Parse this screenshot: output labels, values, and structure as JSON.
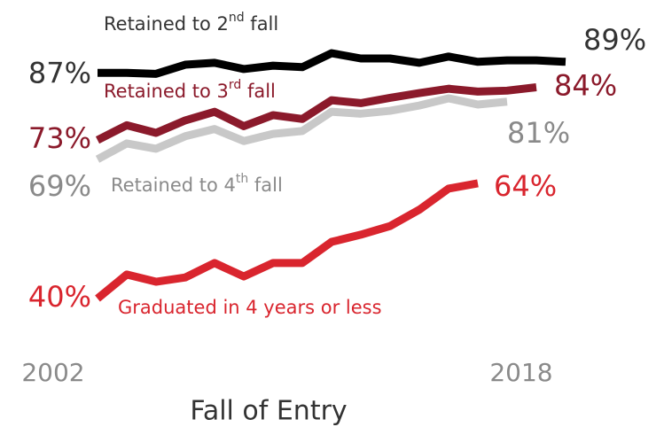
{
  "chart_data": {
    "type": "line",
    "x_label": "Fall of Entry",
    "x": [
      2002,
      2003,
      2004,
      2005,
      2006,
      2007,
      2008,
      2009,
      2010,
      2011,
      2012,
      2013,
      2014,
      2015,
      2016,
      2017,
      2018
    ],
    "xlim": [
      2002,
      2018
    ],
    "xticks": [
      2002,
      2018
    ],
    "ylim": [
      35,
      95
    ],
    "series": [
      {
        "name": "Retained to 2nd fall",
        "color": "#000000",
        "label_color": "#333333",
        "values": [
          87,
          87,
          86.8,
          88.7,
          89.1,
          87.8,
          88.5,
          88.2,
          91.1,
          90,
          90,
          89.1,
          90.4,
          89.3,
          89.6,
          89.6,
          89.3
        ],
        "value_labels": [
          "87%",
          null,
          null,
          null,
          null,
          null,
          null,
          null,
          null,
          null,
          null,
          null,
          null,
          null,
          null,
          null,
          "89%"
        ]
      },
      {
        "name": "Retained to 3rd fall",
        "color": "#8b1a2b",
        "label_color": "#8b1a2b",
        "values": [
          73,
          76.1,
          74.5,
          77.1,
          78.9,
          75.9,
          78.2,
          77.4,
          81.3,
          80.7,
          81.8,
          82.8,
          83.7,
          83.1,
          83.3,
          84,
          null
        ],
        "value_labels": [
          "73%",
          null,
          null,
          null,
          null,
          null,
          null,
          null,
          null,
          null,
          null,
          null,
          null,
          null,
          null,
          "84%",
          null
        ]
      },
      {
        "name": "Retained to 4th fall",
        "color": "#c8c8c8",
        "label_color": "#8a8a8a",
        "values": [
          69,
          72.3,
          71.2,
          73.8,
          75.3,
          72.8,
          74.3,
          74.9,
          78.9,
          78.5,
          79.1,
          80.2,
          81.7,
          80.4,
          81,
          null,
          null
        ],
        "value_labels": [
          "69%",
          null,
          null,
          null,
          null,
          null,
          null,
          null,
          null,
          null,
          null,
          null,
          null,
          null,
          "81%",
          null,
          null
        ]
      },
      {
        "name": "Graduated in 4 years or less",
        "color": "#d9252e",
        "label_color": "#d9252e",
        "values": [
          40,
          45,
          43.5,
          44.4,
          47.4,
          44.6,
          47.4,
          47.4,
          51.8,
          53.3,
          55.1,
          58.5,
          62.9,
          64,
          null,
          null,
          null
        ],
        "value_labels": [
          "40%",
          null,
          null,
          null,
          null,
          null,
          null,
          null,
          null,
          null,
          null,
          null,
          null,
          "64%",
          null,
          null,
          null
        ]
      }
    ]
  }
}
